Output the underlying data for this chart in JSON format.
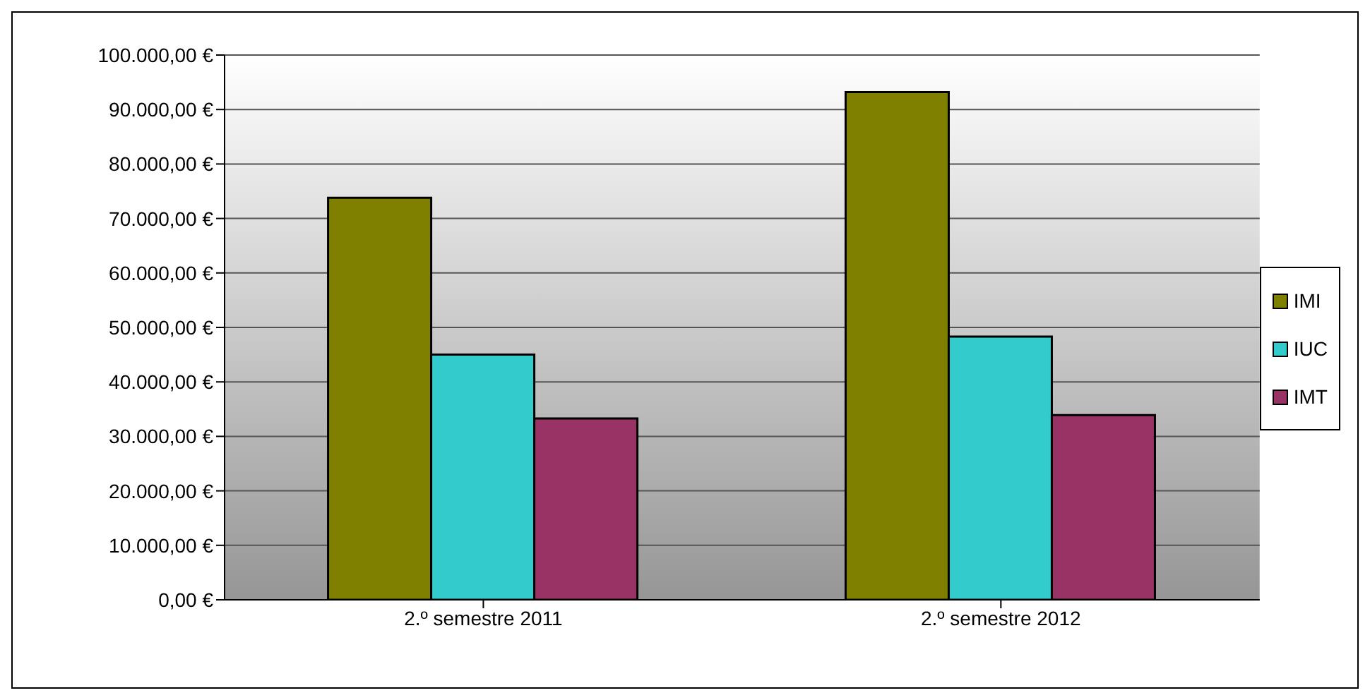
{
  "chart_data": {
    "type": "bar",
    "categories": [
      "2.º semestre 2011",
      "2.º semestre 2012"
    ],
    "series": [
      {
        "name": "IMI",
        "color": "#808000",
        "values": [
          73800,
          93200
        ]
      },
      {
        "name": "IUC",
        "color": "#33cccc",
        "values": [
          45000,
          48300
        ]
      },
      {
        "name": "IMT",
        "color": "#993366",
        "values": [
          33300,
          33900
        ]
      }
    ],
    "ylim": [
      0,
      100000
    ],
    "yticks": [
      {
        "value": 0,
        "label": "0,00 €"
      },
      {
        "value": 10000,
        "label": "10.000,00 €"
      },
      {
        "value": 20000,
        "label": "20.000,00 €"
      },
      {
        "value": 30000,
        "label": "30.000,00 €"
      },
      {
        "value": 40000,
        "label": "40.000,00 €"
      },
      {
        "value": 50000,
        "label": "50.000,00 €"
      },
      {
        "value": 60000,
        "label": "60.000,00 €"
      },
      {
        "value": 70000,
        "label": "70.000,00 €"
      },
      {
        "value": 80000,
        "label": "80.000,00 €"
      },
      {
        "value": 90000,
        "label": "90.000,00 €"
      },
      {
        "value": 100000,
        "label": "100.000,00 €"
      }
    ],
    "grid": "y",
    "legend": "right"
  }
}
